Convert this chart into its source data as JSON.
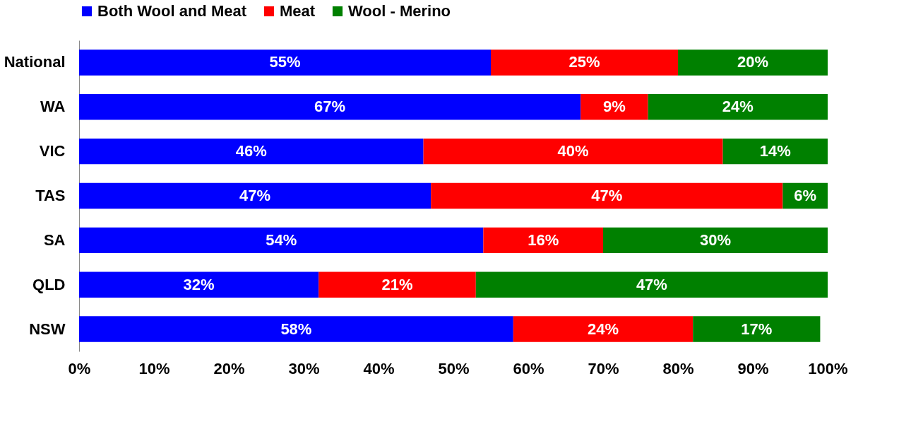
{
  "chart_data": {
    "type": "bar",
    "orientation": "horizontal",
    "stacked": true,
    "categories": [
      "National",
      "WA",
      "VIC",
      "TAS",
      "SA",
      "QLD",
      "NSW"
    ],
    "series": [
      {
        "name": "Both Wool and Meat",
        "color": "#0000ff",
        "values": [
          55,
          67,
          46,
          47,
          54,
          32,
          58
        ],
        "value_labels": [
          "55%",
          "67%",
          "46%",
          "47%",
          "54%",
          "32%",
          "58%"
        ]
      },
      {
        "name": "Meat",
        "color": "#ff0000",
        "values": [
          25,
          9,
          40,
          47,
          16,
          21,
          24
        ],
        "value_labels": [
          "25%",
          "9%",
          "40%",
          "47%",
          "16%",
          "21%",
          "24%"
        ]
      },
      {
        "name": "Wool - Merino",
        "color": "#008000",
        "values": [
          20,
          24,
          14,
          6,
          30,
          47,
          17
        ],
        "value_labels": [
          "20%",
          "24%",
          "14%",
          "6%",
          "30%",
          "47%",
          "17%"
        ]
      }
    ],
    "xlim": [
      0,
      100
    ],
    "xticks": [
      {
        "value": 0,
        "label": "0%"
      },
      {
        "value": 10,
        "label": "10%"
      },
      {
        "value": 20,
        "label": "20%"
      },
      {
        "value": 30,
        "label": "30%"
      },
      {
        "value": 40,
        "label": "40%"
      },
      {
        "value": 50,
        "label": "50%"
      },
      {
        "value": 60,
        "label": "60%"
      },
      {
        "value": 70,
        "label": "70%"
      },
      {
        "value": 80,
        "label": "80%"
      },
      {
        "value": 90,
        "label": "90%"
      },
      {
        "value": 100,
        "label": "100%"
      }
    ],
    "grid": false,
    "legend": "top"
  }
}
